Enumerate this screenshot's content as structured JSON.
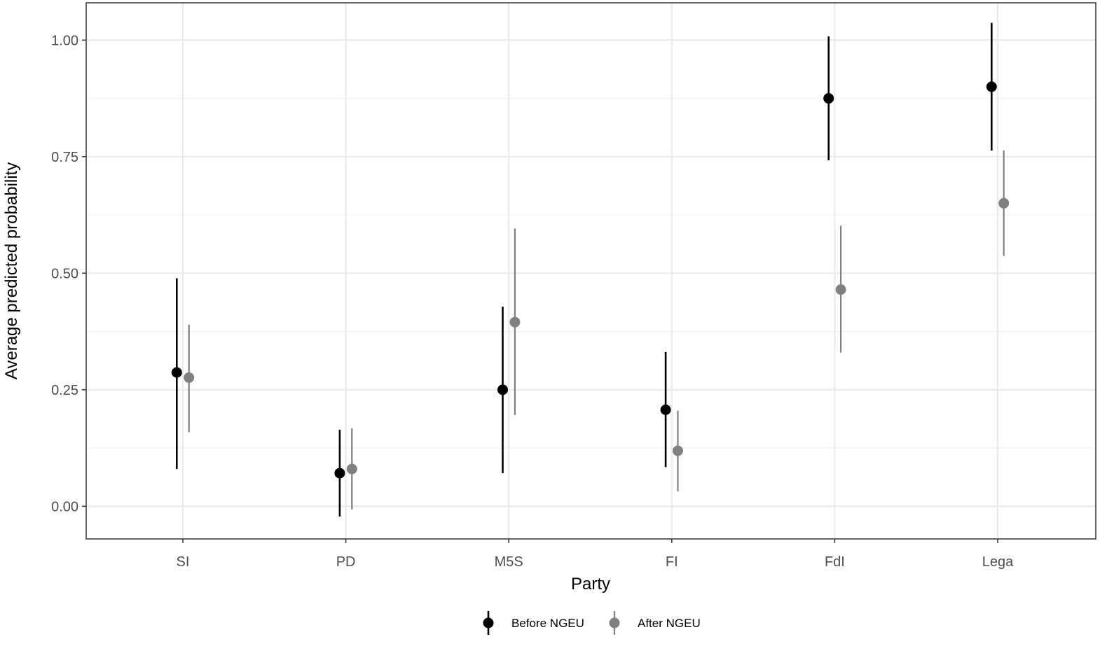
{
  "chart_data": {
    "type": "scatter",
    "subtype": "pointrange",
    "title": "",
    "xlabel": "Party",
    "ylabel": "Average predicted probability",
    "categories": [
      "SI",
      "PD",
      "M5S",
      "FI",
      "FdI",
      "Lega"
    ],
    "ylim": [
      -0.07,
      1.08
    ],
    "yticks": [
      0.0,
      0.25,
      0.5,
      0.75,
      1.0
    ],
    "ytick_labels": [
      "0.00",
      "0.25",
      "0.50",
      "0.75",
      "1.00"
    ],
    "grid": true,
    "legend_position": "bottom",
    "series": [
      {
        "name": "Before NGEU",
        "color": "#000000",
        "values": [
          0.287,
          0.071,
          0.25,
          0.207,
          0.875,
          0.9
        ],
        "lower": [
          0.08,
          -0.022,
          0.071,
          0.084,
          0.742,
          0.763
        ],
        "upper": [
          0.489,
          0.164,
          0.428,
          0.331,
          1.008,
          1.037
        ]
      },
      {
        "name": "After NGEU",
        "color": "#808080",
        "values": [
          0.276,
          0.08,
          0.395,
          0.119,
          0.465,
          0.65
        ],
        "lower": [
          0.159,
          -0.007,
          0.196,
          0.032,
          0.33,
          0.537
        ],
        "upper": [
          0.39,
          0.167,
          0.596,
          0.205,
          0.602,
          0.763
        ]
      }
    ]
  }
}
